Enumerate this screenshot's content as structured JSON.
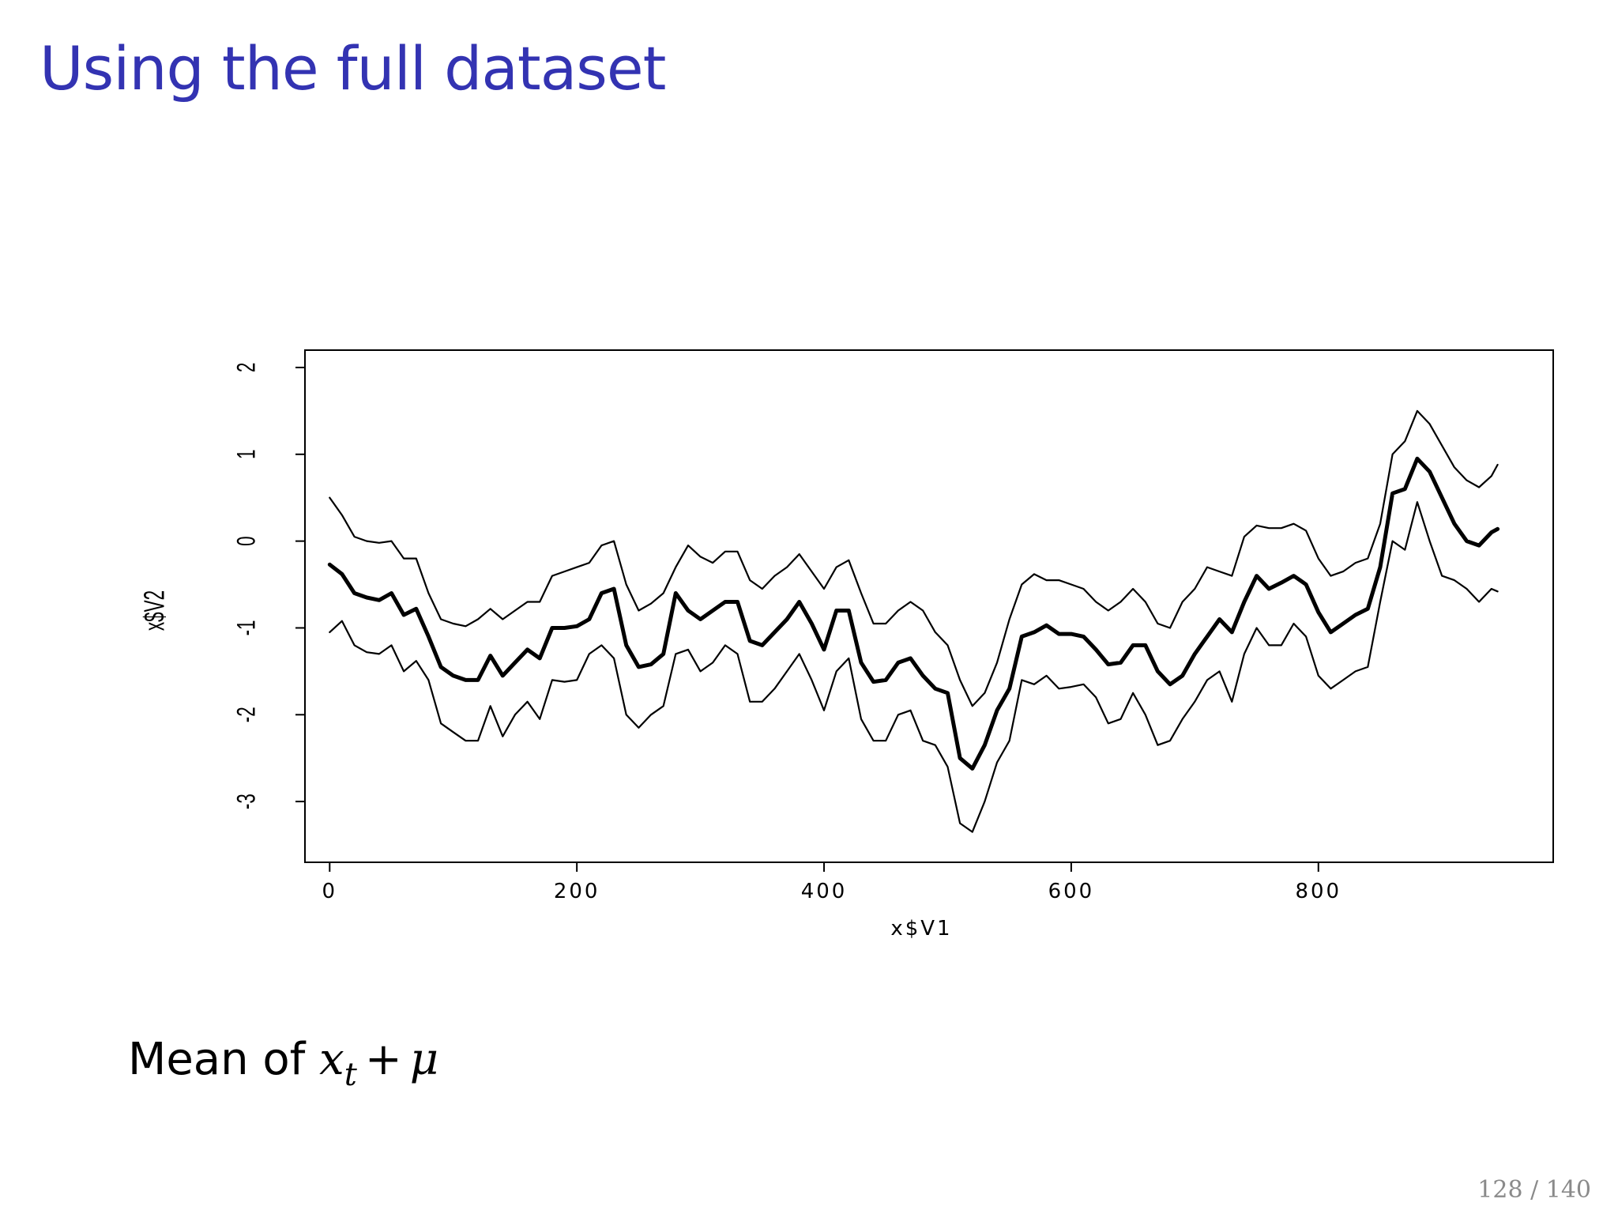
{
  "slide": {
    "title": "Using the full dataset",
    "caption_prefix": "Mean of",
    "caption_math_var": "x",
    "caption_math_sub": "t",
    "caption_math_op": "+",
    "caption_math_mu": "μ",
    "page_number": "128 / 140"
  },
  "chart_data": {
    "type": "line",
    "xlabel": "x$V1",
    "ylabel": "x$V2",
    "xlim": [
      -20,
      990
    ],
    "ylim": [
      -3.7,
      2.2
    ],
    "xticks": [
      0,
      200,
      400,
      600,
      800
    ],
    "yticks": [
      -3,
      -2,
      -1,
      0,
      1,
      2
    ],
    "grid": false,
    "line_color": "#000000",
    "series": [
      {
        "role": "upper",
        "x": [
          0,
          10,
          20,
          30,
          40,
          50,
          60,
          70,
          80,
          90,
          100,
          110,
          120,
          130,
          140,
          150,
          160,
          170,
          180,
          190,
          200,
          210,
          220,
          230,
          240,
          250,
          260,
          270,
          280,
          290,
          300,
          310,
          320,
          330,
          340,
          350,
          360,
          370,
          380,
          390,
          400,
          410,
          420,
          430,
          440,
          450,
          460,
          470,
          480,
          490,
          500,
          510,
          520,
          530,
          540,
          550,
          560,
          570,
          580,
          590,
          600,
          610,
          620,
          630,
          640,
          650,
          660,
          670,
          680,
          690,
          700,
          710,
          720,
          730,
          740,
          750,
          760,
          770,
          780,
          790,
          800,
          810,
          820,
          830,
          840,
          850,
          860,
          870,
          880,
          890,
          900,
          910,
          920,
          930,
          940,
          945
        ],
        "values": [
          0.5,
          0.3,
          0.05,
          0.0,
          -0.02,
          0.0,
          -0.2,
          -0.2,
          -0.6,
          -0.9,
          -0.95,
          -0.98,
          -0.9,
          -0.78,
          -0.9,
          -0.8,
          -0.7,
          -0.7,
          -0.4,
          -0.35,
          -0.3,
          -0.25,
          -0.05,
          0.0,
          -0.5,
          -0.8,
          -0.72,
          -0.6,
          -0.3,
          -0.05,
          -0.18,
          -0.25,
          -0.12,
          -0.12,
          -0.45,
          -0.55,
          -0.4,
          -0.3,
          -0.15,
          -0.35,
          -0.55,
          -0.3,
          -0.22,
          -0.6,
          -0.95,
          -0.95,
          -0.8,
          -0.7,
          -0.8,
          -1.05,
          -1.2,
          -1.6,
          -1.9,
          -1.75,
          -1.4,
          -0.9,
          -0.5,
          -0.38,
          -0.45,
          -0.45,
          -0.5,
          -0.55,
          -0.7,
          -0.8,
          -0.7,
          -0.55,
          -0.7,
          -0.95,
          -1.0,
          -0.7,
          -0.55,
          -0.3,
          -0.35,
          -0.4,
          0.05,
          0.18,
          0.15,
          0.15,
          0.2,
          0.12,
          -0.2,
          -0.4,
          -0.35,
          -0.25,
          -0.2,
          0.2,
          1.0,
          1.15,
          1.5,
          1.35,
          1.1,
          0.85,
          0.7,
          0.62,
          0.75,
          0.88
        ]
      },
      {
        "role": "mean",
        "x": [
          0,
          10,
          20,
          30,
          40,
          50,
          60,
          70,
          80,
          90,
          100,
          110,
          120,
          130,
          140,
          150,
          160,
          170,
          180,
          190,
          200,
          210,
          220,
          230,
          240,
          250,
          260,
          270,
          280,
          290,
          300,
          310,
          320,
          330,
          340,
          350,
          360,
          370,
          380,
          390,
          400,
          410,
          420,
          430,
          440,
          450,
          460,
          470,
          480,
          490,
          500,
          510,
          520,
          530,
          540,
          550,
          560,
          570,
          580,
          590,
          600,
          610,
          620,
          630,
          640,
          650,
          660,
          670,
          680,
          690,
          700,
          710,
          720,
          730,
          740,
          750,
          760,
          770,
          780,
          790,
          800,
          810,
          820,
          830,
          840,
          850,
          860,
          870,
          880,
          890,
          900,
          910,
          920,
          930,
          940,
          945
        ],
        "values": [
          -0.27,
          -0.38,
          -0.6,
          -0.65,
          -0.68,
          -0.6,
          -0.85,
          -0.78,
          -1.1,
          -1.45,
          -1.55,
          -1.6,
          -1.6,
          -1.32,
          -1.55,
          -1.4,
          -1.25,
          -1.35,
          -1.0,
          -1.0,
          -0.98,
          -0.9,
          -0.6,
          -0.55,
          -1.2,
          -1.45,
          -1.42,
          -1.3,
          -0.6,
          -0.8,
          -0.9,
          -0.8,
          -0.7,
          -0.7,
          -1.15,
          -1.2,
          -1.05,
          -0.9,
          -0.7,
          -0.95,
          -1.25,
          -0.8,
          -0.8,
          -1.4,
          -1.62,
          -1.6,
          -1.4,
          -1.35,
          -1.55,
          -1.7,
          -1.75,
          -2.5,
          -2.62,
          -2.35,
          -1.95,
          -1.7,
          -1.1,
          -1.05,
          -0.97,
          -1.07,
          -1.07,
          -1.1,
          -1.25,
          -1.42,
          -1.4,
          -1.2,
          -1.2,
          -1.5,
          -1.65,
          -1.55,
          -1.3,
          -1.1,
          -0.9,
          -1.05,
          -0.7,
          -0.4,
          -0.55,
          -0.48,
          -0.4,
          -0.5,
          -0.82,
          -1.05,
          -0.95,
          -0.85,
          -0.78,
          -0.3,
          0.55,
          0.6,
          0.95,
          0.8,
          0.5,
          0.2,
          0.0,
          -0.05,
          0.1,
          0.14
        ]
      },
      {
        "role": "lower",
        "x": [
          0,
          10,
          20,
          30,
          40,
          50,
          60,
          70,
          80,
          90,
          100,
          110,
          120,
          130,
          140,
          150,
          160,
          170,
          180,
          190,
          200,
          210,
          220,
          230,
          240,
          250,
          260,
          270,
          280,
          290,
          300,
          310,
          320,
          330,
          340,
          350,
          360,
          370,
          380,
          390,
          400,
          410,
          420,
          430,
          440,
          450,
          460,
          470,
          480,
          490,
          500,
          510,
          520,
          530,
          540,
          550,
          560,
          570,
          580,
          590,
          600,
          610,
          620,
          630,
          640,
          650,
          660,
          670,
          680,
          690,
          700,
          710,
          720,
          730,
          740,
          750,
          760,
          770,
          780,
          790,
          800,
          810,
          820,
          830,
          840,
          850,
          860,
          870,
          880,
          890,
          900,
          910,
          920,
          930,
          940,
          945
        ],
        "values": [
          -1.05,
          -0.92,
          -1.2,
          -1.28,
          -1.3,
          -1.2,
          -1.5,
          -1.38,
          -1.6,
          -2.1,
          -2.2,
          -2.3,
          -2.3,
          -1.9,
          -2.25,
          -2.0,
          -1.85,
          -2.05,
          -1.6,
          -1.62,
          -1.6,
          -1.3,
          -1.2,
          -1.35,
          -2.0,
          -2.15,
          -2.0,
          -1.9,
          -1.3,
          -1.25,
          -1.5,
          -1.4,
          -1.2,
          -1.3,
          -1.85,
          -1.85,
          -1.7,
          -1.5,
          -1.3,
          -1.6,
          -1.95,
          -1.5,
          -1.35,
          -2.05,
          -2.3,
          -2.3,
          -2.0,
          -1.95,
          -2.3,
          -2.35,
          -2.6,
          -3.25,
          -3.35,
          -3.0,
          -2.55,
          -2.3,
          -1.6,
          -1.65,
          -1.55,
          -1.7,
          -1.68,
          -1.65,
          -1.8,
          -2.1,
          -2.05,
          -1.75,
          -2.0,
          -2.35,
          -2.3,
          -2.05,
          -1.85,
          -1.6,
          -1.5,
          -1.85,
          -1.3,
          -1.0,
          -1.2,
          -1.2,
          -0.95,
          -1.1,
          -1.55,
          -1.7,
          -1.6,
          -1.5,
          -1.45,
          -0.7,
          0.0,
          -0.1,
          0.45,
          0.0,
          -0.4,
          -0.45,
          -0.55,
          -0.7,
          -0.55,
          -0.58
        ]
      }
    ]
  }
}
